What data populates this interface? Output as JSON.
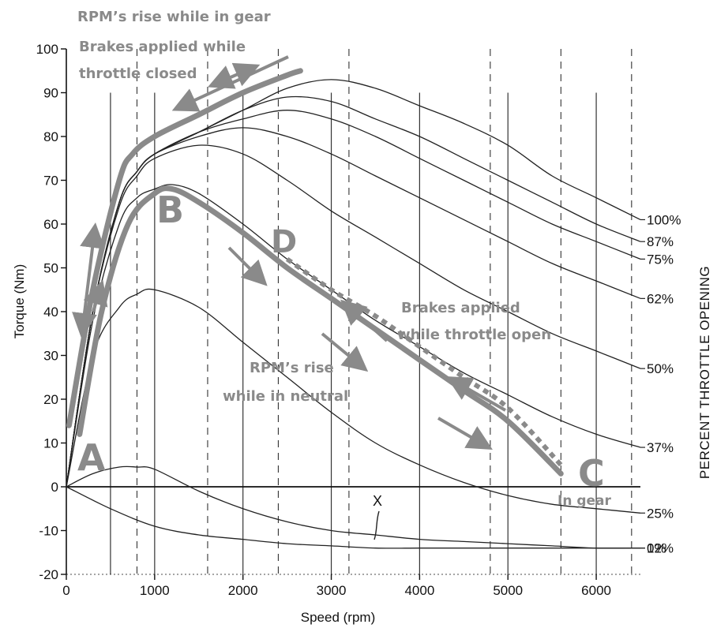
{
  "chart_data": {
    "type": "line",
    "xlabel": "Speed (rpm)",
    "ylabel": "Torque (Nm)",
    "right_label": "PERCENT THROTTLE OPENING",
    "xlim": [
      0,
      6500
    ],
    "ylim": [
      -20,
      100
    ],
    "x_ticks": [
      0,
      1000,
      2000,
      3000,
      4000,
      5000,
      6000
    ],
    "y_ticks": [
      100,
      90,
      80,
      70,
      60,
      50,
      40,
      30,
      20,
      10,
      0,
      -10,
      -20
    ],
    "grid": false,
    "solid_lines_x": [
      500,
      1000,
      2000,
      3000,
      4000,
      5000,
      6000
    ],
    "dashed_lines_x": [
      800,
      1600,
      2400,
      3200,
      4800,
      5600,
      6400
    ],
    "series": [
      {
        "name": "100%",
        "x": [
          0,
          300,
          600,
          800,
          1000,
          1500,
          2000,
          2500,
          3000,
          3500,
          4000,
          4500,
          5000,
          5500,
          6000,
          6500
        ],
        "y": [
          0,
          40,
          65,
          72,
          76,
          81,
          86,
          91,
          93,
          91,
          87,
          83,
          78,
          71,
          66,
          61
        ]
      },
      {
        "name": "87%",
        "x": [
          0,
          300,
          600,
          800,
          1000,
          1500,
          2000,
          2500,
          3000,
          3500,
          4000,
          4500,
          5000,
          5500,
          6000,
          6500
        ],
        "y": [
          0,
          40,
          65,
          72,
          76,
          81,
          86,
          89,
          88,
          84,
          80,
          75,
          70,
          65,
          60,
          56
        ]
      },
      {
        "name": "75%",
        "x": [
          0,
          300,
          600,
          800,
          1000,
          1500,
          2000,
          2500,
          3000,
          3500,
          4000,
          4500,
          5000,
          5500,
          6000,
          6500
        ],
        "y": [
          0,
          40,
          65,
          72,
          76,
          81,
          84,
          86,
          84,
          80,
          75,
          70,
          65,
          60,
          56,
          52
        ]
      },
      {
        "name": "62%",
        "x": [
          0,
          300,
          600,
          800,
          1000,
          1500,
          2000,
          2500,
          3000,
          3500,
          4000,
          4500,
          5000,
          5500,
          6000,
          6500
        ],
        "y": [
          0,
          40,
          65,
          72,
          76,
          80,
          82,
          80,
          76,
          71,
          66,
          61,
          56,
          51,
          47,
          43
        ]
      },
      {
        "name": "50%",
        "x": [
          0,
          300,
          600,
          800,
          1000,
          1500,
          2000,
          2500,
          3000,
          3500,
          4000,
          4500,
          5000,
          5500,
          6000,
          6500
        ],
        "y": [
          0,
          40,
          64,
          71,
          75,
          78,
          76,
          70,
          63,
          57,
          51,
          45,
          40,
          35,
          31,
          27
        ]
      },
      {
        "name": "37%",
        "x": [
          0,
          300,
          600,
          800,
          1000,
          1200,
          1500,
          2000,
          2500,
          3000,
          3500,
          4000,
          4500,
          5000,
          5500,
          6000,
          6500
        ],
        "y": [
          0,
          38,
          60,
          66,
          68,
          69,
          67,
          60,
          52,
          45,
          38,
          32,
          26,
          21,
          16,
          12,
          9
        ]
      },
      {
        "name": "25%",
        "x": [
          0,
          300,
          600,
          800,
          1000,
          1500,
          2000,
          2500,
          3000,
          3500,
          4000,
          4500,
          5000,
          5500,
          6000,
          6500
        ],
        "y": [
          0,
          30,
          41,
          44,
          45,
          41,
          33,
          25,
          17,
          10,
          5,
          1,
          -2,
          -4,
          -5,
          -6
        ]
      },
      {
        "name": "12%",
        "x": [
          0,
          300,
          600,
          800,
          1000,
          1500,
          2000,
          2500,
          3000,
          3500,
          4000,
          4500,
          5000,
          5500,
          6000,
          6500
        ],
        "y": [
          0,
          3,
          4.5,
          4.5,
          4,
          -1,
          -5,
          -8,
          -10,
          -11,
          -12,
          -12.5,
          -13,
          -13.5,
          -14,
          -14
        ]
      },
      {
        "name": "0%",
        "x": [
          0,
          500,
          1000,
          1500,
          2000,
          2500,
          3000,
          3500,
          4000,
          4500,
          5000,
          5500,
          6000,
          6500
        ],
        "y": [
          0,
          -5,
          -9,
          -11,
          -12,
          -13,
          -13.5,
          -14,
          -14,
          -14,
          -14,
          -14,
          -14,
          -14
        ]
      }
    ],
    "overlay_paths": [
      {
        "name": "closed-throttle-path",
        "style": "thick",
        "x": [
          30,
          300,
          600,
          750,
          1000,
          1500,
          2000,
          2500,
          2650
        ],
        "y": [
          14,
          45,
          70,
          76,
          80,
          85,
          90,
          94,
          95
        ]
      },
      {
        "name": "open-throttle-path",
        "style": "thick",
        "x": [
          150,
          400,
          700,
          1000,
          1200,
          1500,
          2000,
          2500,
          3000,
          3500,
          4000,
          4500,
          5000,
          5600
        ],
        "y": [
          12,
          40,
          60,
          67,
          68,
          65,
          58,
          50,
          43,
          36,
          29,
          22,
          15,
          3
        ]
      },
      {
        "name": "braking-path",
        "style": "dotted",
        "x": [
          2500,
          3000,
          3500,
          4000,
          4500,
          5000,
          5600
        ],
        "y": [
          52,
          45,
          39,
          32,
          25,
          18,
          5
        ]
      }
    ],
    "annotations": {
      "title_line1": "RPM’s rise while in gear",
      "title_line2": "Brakes applied while",
      "title_line3": "throttle closed",
      "brakes_open_1": "Brakes applied",
      "brakes_open_2": "while throttle open",
      "neutral_1": "RPM’s rise",
      "neutral_2": "while in neutral",
      "in_gear": "In gear",
      "marker_x": "X",
      "point_a": "A",
      "point_b": "B",
      "point_c": "C",
      "point_d": "D"
    },
    "colors": {
      "curve": "#222222",
      "overlay": "#8a8a8a",
      "axis": "#111111"
    }
  }
}
